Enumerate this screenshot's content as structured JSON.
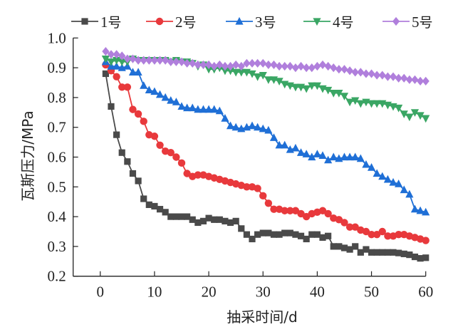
{
  "chart_data": {
    "type": "line",
    "title": "",
    "xlabel": "抽采时间/d",
    "ylabel": "瓦斯压力/MPa",
    "xlim": [
      -5,
      60
    ],
    "ylim": [
      0.2,
      1.0
    ],
    "xticks": [
      0,
      10,
      20,
      30,
      40,
      50,
      60
    ],
    "xtick_labels": [
      "0",
      "10",
      "20",
      "30",
      "40",
      "50",
      "60"
    ],
    "yticks": [
      0.2,
      0.3,
      0.4,
      0.5,
      0.6,
      0.7,
      0.8,
      0.9,
      1.0
    ],
    "ytick_labels": [
      "0.2",
      "0.3",
      "0.4",
      "0.5",
      "0.6",
      "0.7",
      "0.8",
      "0.9",
      "1.0"
    ],
    "grid": false,
    "legend_position": "top",
    "x": [
      1,
      2,
      3,
      4,
      5,
      6,
      7,
      8,
      9,
      10,
      11,
      12,
      13,
      14,
      15,
      16,
      17,
      18,
      19,
      20,
      21,
      22,
      23,
      24,
      25,
      26,
      27,
      28,
      29,
      30,
      31,
      32,
      33,
      34,
      35,
      36,
      37,
      38,
      39,
      40,
      41,
      42,
      43,
      44,
      45,
      46,
      47,
      48,
      49,
      50,
      51,
      52,
      53,
      54,
      55,
      56,
      57,
      58,
      59,
      60
    ],
    "series": [
      {
        "name": "1号",
        "num": "1",
        "suffix": "号",
        "color": "#4a4a4a",
        "marker": "square",
        "values": [
          0.88,
          0.77,
          0.675,
          0.615,
          0.585,
          0.545,
          0.52,
          0.46,
          0.44,
          0.435,
          0.425,
          0.415,
          0.4,
          0.4,
          0.4,
          0.4,
          0.39,
          0.38,
          0.385,
          0.395,
          0.39,
          0.39,
          0.385,
          0.38,
          0.385,
          0.36,
          0.34,
          0.325,
          0.34,
          0.345,
          0.345,
          0.34,
          0.34,
          0.345,
          0.345,
          0.34,
          0.335,
          0.325,
          0.34,
          0.34,
          0.33,
          0.335,
          0.3,
          0.3,
          0.295,
          0.29,
          0.3,
          0.28,
          0.29,
          0.28,
          0.28,
          0.28,
          0.28,
          0.28,
          0.278,
          0.275,
          0.272,
          0.265,
          0.26,
          0.262
        ]
      },
      {
        "name": "2号",
        "num": "2",
        "suffix": "号",
        "color": "#e8393c",
        "marker": "circle",
        "values": [
          0.91,
          0.89,
          0.87,
          0.835,
          0.835,
          0.76,
          0.745,
          0.72,
          0.675,
          0.67,
          0.64,
          0.62,
          0.615,
          0.6,
          0.58,
          0.545,
          0.535,
          0.54,
          0.54,
          0.535,
          0.53,
          0.525,
          0.52,
          0.515,
          0.51,
          0.505,
          0.5,
          0.5,
          0.495,
          0.47,
          0.445,
          0.425,
          0.425,
          0.42,
          0.42,
          0.42,
          0.41,
          0.4,
          0.41,
          0.415,
          0.42,
          0.41,
          0.395,
          0.39,
          0.38,
          0.365,
          0.365,
          0.355,
          0.35,
          0.34,
          0.34,
          0.35,
          0.335,
          0.335,
          0.34,
          0.34,
          0.335,
          0.33,
          0.325,
          0.32
        ]
      },
      {
        "name": "3号",
        "num": "3",
        "suffix": "号",
        "color": "#1f6fd6",
        "marker": "triangle-up",
        "values": [
          0.92,
          0.905,
          0.905,
          0.9,
          0.905,
          0.885,
          0.885,
          0.84,
          0.825,
          0.82,
          0.81,
          0.8,
          0.79,
          0.785,
          0.77,
          0.765,
          0.765,
          0.76,
          0.76,
          0.76,
          0.76,
          0.755,
          0.73,
          0.705,
          0.7,
          0.695,
          0.7,
          0.705,
          0.7,
          0.695,
          0.69,
          0.665,
          0.64,
          0.64,
          0.625,
          0.63,
          0.615,
          0.61,
          0.6,
          0.61,
          0.605,
          0.59,
          0.6,
          0.595,
          0.6,
          0.6,
          0.6,
          0.595,
          0.575,
          0.565,
          0.545,
          0.535,
          0.525,
          0.515,
          0.51,
          0.49,
          0.475,
          0.425,
          0.42,
          0.415
        ]
      },
      {
        "name": "4号",
        "num": "4",
        "suffix": "号",
        "color": "#3aa664",
        "marker": "triangle-down",
        "values": [
          0.93,
          0.92,
          0.925,
          0.92,
          0.92,
          0.93,
          0.925,
          0.925,
          0.925,
          0.925,
          0.925,
          0.925,
          0.92,
          0.925,
          0.92,
          0.92,
          0.915,
          0.905,
          0.91,
          0.895,
          0.895,
          0.9,
          0.89,
          0.89,
          0.885,
          0.885,
          0.885,
          0.88,
          0.87,
          0.875,
          0.86,
          0.86,
          0.855,
          0.845,
          0.84,
          0.835,
          0.835,
          0.83,
          0.84,
          0.84,
          0.83,
          0.825,
          0.815,
          0.815,
          0.805,
          0.785,
          0.79,
          0.78,
          0.785,
          0.78,
          0.78,
          0.78,
          0.775,
          0.77,
          0.765,
          0.745,
          0.735,
          0.75,
          0.74,
          0.73
        ]
      },
      {
        "name": "5号",
        "num": "5",
        "suffix": "号",
        "color": "#b07fdc",
        "marker": "diamond",
        "values": [
          0.955,
          0.945,
          0.945,
          0.94,
          0.93,
          0.93,
          0.925,
          0.925,
          0.925,
          0.925,
          0.925,
          0.925,
          0.92,
          0.92,
          0.92,
          0.915,
          0.915,
          0.91,
          0.91,
          0.91,
          0.905,
          0.91,
          0.905,
          0.905,
          0.91,
          0.905,
          0.915,
          0.915,
          0.915,
          0.915,
          0.91,
          0.91,
          0.905,
          0.905,
          0.905,
          0.9,
          0.905,
          0.9,
          0.9,
          0.905,
          0.91,
          0.905,
          0.9,
          0.895,
          0.895,
          0.89,
          0.885,
          0.885,
          0.88,
          0.88,
          0.875,
          0.875,
          0.87,
          0.87,
          0.865,
          0.865,
          0.86,
          0.86,
          0.855,
          0.855
        ]
      }
    ]
  }
}
